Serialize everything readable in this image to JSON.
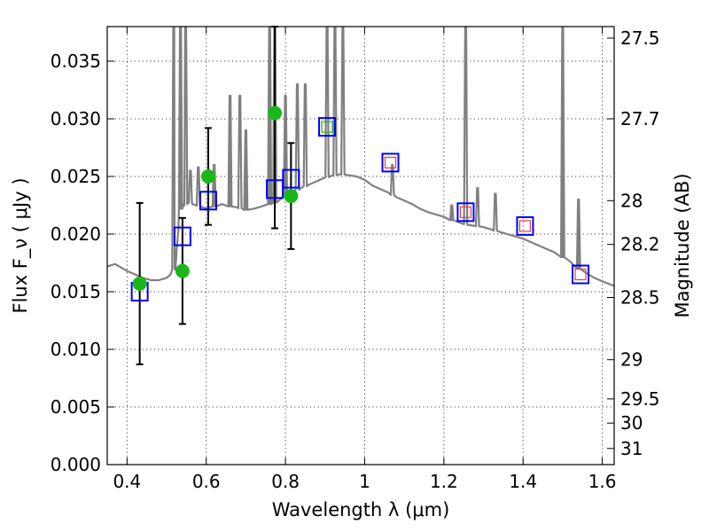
{
  "chart_data": {
    "type": "scatter",
    "xlabel": "Wavelength  λ (μm)",
    "ylabel_left": "Flux  F_ν  ( μJy )",
    "ylabel_right": "Magnitude (AB)",
    "xlim": [
      0.35,
      1.63
    ],
    "ylim": [
      0.0,
      0.038
    ],
    "grid": true,
    "x_ticks": [
      0.4,
      0.6,
      0.8,
      1.0,
      1.2,
      1.4,
      1.6
    ],
    "x_tick_labels": [
      "0.4",
      "0.6",
      "0.8",
      "1",
      "1.2",
      "1.4",
      "1.6"
    ],
    "y_ticks": [
      0.0,
      0.005,
      0.01,
      0.015,
      0.02,
      0.025,
      0.03,
      0.035
    ],
    "y_tick_labels": [
      "0.000",
      "0.005",
      "0.010",
      "0.015",
      "0.020",
      "0.025",
      "0.030",
      "0.035"
    ],
    "right_ticks": [
      {
        "flux": 0.037,
        "label": "27.5"
      },
      {
        "flux": 0.03,
        "label": "27.7"
      },
      {
        "flux": 0.0229,
        "label": "28"
      },
      {
        "flux": 0.0191,
        "label": "28.2"
      },
      {
        "flux": 0.0145,
        "label": "28.5"
      },
      {
        "flux": 0.0091,
        "label": "29"
      },
      {
        "flux": 0.0057,
        "label": "29.5"
      },
      {
        "flux": 0.0036,
        "label": "30"
      },
      {
        "flux": 0.0014,
        "label": "31"
      }
    ],
    "series": [
      {
        "name": "SED model spectrum",
        "kind": "line",
        "color": "#808080",
        "points": [
          [
            0.35,
            0.0172
          ],
          [
            0.37,
            0.0174
          ],
          [
            0.385,
            0.0171
          ],
          [
            0.4,
            0.0168
          ],
          [
            0.42,
            0.0165
          ],
          [
            0.44,
            0.0162
          ],
          [
            0.46,
            0.016
          ],
          [
            0.48,
            0.016
          ],
          [
            0.5,
            0.0162
          ],
          [
            0.51,
            0.0165
          ],
          [
            0.52,
            0.017
          ],
          [
            0.525,
            0.0185
          ],
          [
            0.53,
            0.0205
          ],
          [
            0.535,
            0.0222
          ],
          [
            0.545,
            0.0225
          ],
          [
            0.555,
            0.0228
          ],
          [
            0.565,
            0.0226
          ],
          [
            0.575,
            0.0225
          ],
          [
            0.585,
            0.0224
          ],
          [
            0.6,
            0.0222
          ],
          [
            0.62,
            0.0224
          ],
          [
            0.64,
            0.0226
          ],
          [
            0.66,
            0.0224
          ],
          [
            0.68,
            0.0223
          ],
          [
            0.7,
            0.0221
          ],
          [
            0.72,
            0.0222
          ],
          [
            0.74,
            0.0224
          ],
          [
            0.76,
            0.0226
          ],
          [
            0.78,
            0.0228
          ],
          [
            0.8,
            0.0233
          ],
          [
            0.82,
            0.0237
          ],
          [
            0.84,
            0.024
          ],
          [
            0.86,
            0.0243
          ],
          [
            0.88,
            0.0246
          ],
          [
            0.9,
            0.0249
          ],
          [
            0.92,
            0.0251
          ],
          [
            0.94,
            0.0252
          ],
          [
            0.96,
            0.0251
          ],
          [
            0.98,
            0.025
          ],
          [
            1.0,
            0.0247
          ],
          [
            1.02,
            0.0242
          ],
          [
            1.04,
            0.0239
          ],
          [
            1.06,
            0.0236
          ],
          [
            1.08,
            0.0232
          ],
          [
            1.1,
            0.0229
          ],
          [
            1.12,
            0.0226
          ],
          [
            1.14,
            0.0222
          ],
          [
            1.16,
            0.0219
          ],
          [
            1.18,
            0.0217
          ],
          [
            1.2,
            0.0215
          ],
          [
            1.22,
            0.0212
          ],
          [
            1.24,
            0.021
          ],
          [
            1.26,
            0.0208
          ],
          [
            1.28,
            0.0207
          ],
          [
            1.3,
            0.0206
          ],
          [
            1.32,
            0.0204
          ],
          [
            1.34,
            0.0202
          ],
          [
            1.36,
            0.02
          ],
          [
            1.38,
            0.0198
          ],
          [
            1.4,
            0.0196
          ],
          [
            1.42,
            0.0193
          ],
          [
            1.44,
            0.019
          ],
          [
            1.46,
            0.0187
          ],
          [
            1.48,
            0.0184
          ],
          [
            1.5,
            0.018
          ],
          [
            1.52,
            0.0176
          ],
          [
            1.54,
            0.017
          ],
          [
            1.56,
            0.0166
          ],
          [
            1.58,
            0.0162
          ],
          [
            1.6,
            0.0159
          ],
          [
            1.63,
            0.0155
          ]
        ],
        "emission_lines": [
          {
            "x": 0.518,
            "peak": 0.038
          },
          {
            "x": 0.535,
            "peak": 0.038
          },
          {
            "x": 0.548,
            "peak": 0.038
          },
          {
            "x": 0.56,
            "peak": 0.0255
          },
          {
            "x": 0.58,
            "peak": 0.0258
          },
          {
            "x": 0.62,
            "peak": 0.026
          },
          {
            "x": 0.66,
            "peak": 0.032
          },
          {
            "x": 0.685,
            "peak": 0.032
          },
          {
            "x": 0.7,
            "peak": 0.029
          },
          {
            "x": 0.76,
            "peak": 0.038
          },
          {
            "x": 0.773,
            "peak": 0.038
          },
          {
            "x": 0.8,
            "peak": 0.032
          },
          {
            "x": 0.83,
            "peak": 0.033
          },
          {
            "x": 0.85,
            "peak": 0.033
          },
          {
            "x": 0.905,
            "peak": 0.038
          },
          {
            "x": 0.925,
            "peak": 0.038
          },
          {
            "x": 0.945,
            "peak": 0.038
          },
          {
            "x": 1.07,
            "peak": 0.026
          },
          {
            "x": 1.22,
            "peak": 0.0225
          },
          {
            "x": 1.255,
            "peak": 0.038
          },
          {
            "x": 1.285,
            "peak": 0.024
          },
          {
            "x": 1.33,
            "peak": 0.0235
          },
          {
            "x": 1.5,
            "peak": 0.038
          },
          {
            "x": 1.54,
            "peak": 0.023
          }
        ]
      },
      {
        "name": "observed photometry",
        "kind": "points-with-errors",
        "color": "#1ab71a",
        "points": [
          {
            "x": 0.432,
            "y": 0.0157,
            "err": 0.007
          },
          {
            "x": 0.54,
            "y": 0.0168,
            "err": 0.0046
          },
          {
            "x": 0.605,
            "y": 0.025,
            "err": 0.0042
          },
          {
            "x": 0.773,
            "y": 0.0305,
            "err": 0.01
          },
          {
            "x": 0.814,
            "y": 0.0233,
            "err": 0.0046
          }
        ]
      },
      {
        "name": "model synthetic photometry",
        "kind": "open-squares",
        "color": "#0000ff",
        "points": [
          {
            "x": 0.432,
            "y": 0.015
          },
          {
            "x": 0.54,
            "y": 0.0198
          },
          {
            "x": 0.605,
            "y": 0.0229
          },
          {
            "x": 0.773,
            "y": 0.0239
          },
          {
            "x": 0.814,
            "y": 0.0248
          },
          {
            "x": 0.905,
            "y": 0.0293
          },
          {
            "x": 1.065,
            "y": 0.0262
          },
          {
            "x": 1.255,
            "y": 0.0219
          },
          {
            "x": 1.405,
            "y": 0.0207
          },
          {
            "x": 1.545,
            "y": 0.0165
          }
        ]
      },
      {
        "name": "NIR photometry",
        "kind": "open-squares-small",
        "color": "#e04040",
        "points": [
          {
            "x": 1.065,
            "y": 0.0262
          },
          {
            "x": 1.255,
            "y": 0.0219
          },
          {
            "x": 1.405,
            "y": 0.0207
          },
          {
            "x": 1.545,
            "y": 0.0165
          }
        ]
      },
      {
        "name": "NIR photometry (green)",
        "kind": "open-squares-small",
        "color": "#1ab71a",
        "points": [
          {
            "x": 0.905,
            "y": 0.0293
          }
        ]
      }
    ]
  }
}
